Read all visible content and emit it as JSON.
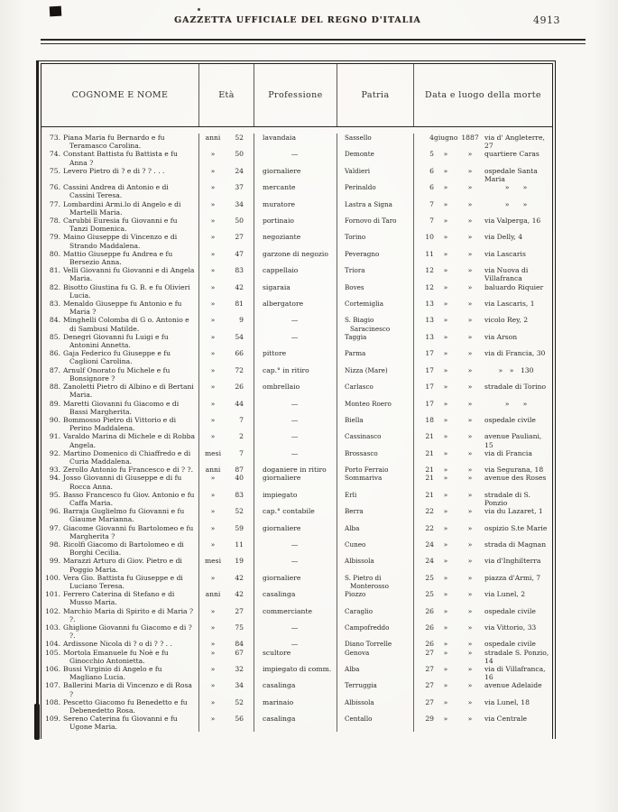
{
  "page": {
    "masthead": "GAZZETTA UFFICIALE DEL REGNO D'ITALIA",
    "page_number": "4913"
  },
  "table": {
    "headers": [
      "COGNOME E NOME",
      "Età",
      "Professione",
      "Patria",
      "Data e luogo della morte"
    ],
    "rows": [
      {
        "n": "73.",
        "name": "Piana Maria fu Bernardo e fu Teramasco Carolina.",
        "unit": "anni",
        "age": "52",
        "prof": "lavandaia",
        "patria": "Sassello",
        "day": "4",
        "month": "giugno",
        "year": "1887",
        "place": "via d' Angleterre, 27"
      },
      {
        "n": "74.",
        "name": "Constant Battista fu Battista e fu Anna ?",
        "unit": "»",
        "age": "50",
        "prof": "—",
        "patria": "Demonte",
        "day": "5",
        "month": "»",
        "year": "»",
        "place": "quartiere Caras"
      },
      {
        "n": "75.",
        "name": "Levero Pietro di ? e di ? ? . . .",
        "unit": "»",
        "age": "24",
        "prof": "giornaliere",
        "patria": "Valdieri",
        "day": "6",
        "month": "»",
        "year": "»",
        "place": "ospedale Santa Maria"
      },
      {
        "n": "76.",
        "name": "Cassini Andrea di Antonio e di Cassini Teresa.",
        "unit": "»",
        "age": "37",
        "prof": "mercante",
        "patria": "Perinaldo",
        "day": "6",
        "month": "»",
        "year": "»",
        "place": "»  »"
      },
      {
        "n": "77.",
        "name": "Lombardini Armi.lo di Angelo e di Martelli Maria.",
        "unit": "»",
        "age": "34",
        "prof": "muratore",
        "patria": "Lastra a Signa",
        "day": "7",
        "month": "»",
        "year": "»",
        "place": "»  »"
      },
      {
        "n": "78.",
        "name": "Carubbi Euresia fu Giovanni e fu Tanzi Domenica.",
        "unit": "»",
        "age": "50",
        "prof": "portinaio",
        "patria": "Fornovo di Taro",
        "day": "7",
        "month": "»",
        "year": "»",
        "place": "via Valperga, 16"
      },
      {
        "n": "79.",
        "name": "Maino Giuseppe di Vincenzo e di Strando Maddalena.",
        "unit": "»",
        "age": "27",
        "prof": "negoziante",
        "patria": "Torino",
        "day": "10",
        "month": "»",
        "year": "»",
        "place": "via Delly, 4"
      },
      {
        "n": "80.",
        "name": "Mattio Giuseppe fu Andrea e fu Bersezio Anna.",
        "unit": "»",
        "age": "47",
        "prof": "garzone di negozio",
        "patria": "Peveragno",
        "day": "11",
        "month": "»",
        "year": "»",
        "place": "via Lascaris"
      },
      {
        "n": "81.",
        "name": "Velli Giovanni fu Giovanni e di Angela Maria.",
        "unit": "»",
        "age": "83",
        "prof": "cappellaio",
        "patria": "Triora",
        "day": "12",
        "month": "»",
        "year": "»",
        "place": "via Nuova di Villafranca"
      },
      {
        "n": "82.",
        "name": "Bisotto Giustina fu G. B. e fu Olivieri Lucia.",
        "unit": "»",
        "age": "42",
        "prof": "sigaraia",
        "patria": "Boves",
        "day": "12",
        "month": "»",
        "year": "»",
        "place": "baluardo Riquier"
      },
      {
        "n": "83.",
        "name": "Menaldo Giuseppe fu Antonio e fu Maria ?",
        "unit": "»",
        "age": "81",
        "prof": "albergatore",
        "patria": "Cortemiglia",
        "day": "13",
        "month": "»",
        "year": "»",
        "place": "via Lascaris, 1"
      },
      {
        "n": "84.",
        "name": "Minghelli Colomba di G o. Antonio e di Sambusi Matilde.",
        "unit": "»",
        "age": "9",
        "prof": "—",
        "patria": "S. Biagio Saracinesco",
        "day": "13",
        "month": "»",
        "year": "»",
        "place": "vicolo Rey, 2"
      },
      {
        "n": "85.",
        "name": "Denegri Giovanni fu Luigi e fu Antonini Annetta.",
        "unit": "»",
        "age": "54",
        "prof": "—",
        "patria": "Taggia",
        "day": "13",
        "month": "»",
        "year": "»",
        "place": "via Arson"
      },
      {
        "n": "86.",
        "name": "Gaja Federico fu Giuseppe e fu Caglioni Carolina.",
        "unit": "»",
        "age": "66",
        "prof": "pittore",
        "patria": "Parma",
        "day": "17",
        "month": "»",
        "year": "»",
        "place": "via di Francia, 30"
      },
      {
        "n": "87.",
        "name": "Arnulf Onorato fu Michele e fu Bonsignore ?",
        "unit": "»",
        "age": "72",
        "prof": "cap.° in ritiro",
        "patria": "Nizza (Mare)",
        "day": "17",
        "month": "»",
        "year": "»",
        "place": "» » 130"
      },
      {
        "n": "88.",
        "name": "Zanoletti Pietro di Albino e di Bertani Maria.",
        "unit": "»",
        "age": "26",
        "prof": "ombrellaio",
        "patria": "Carlasco",
        "day": "17",
        "month": "»",
        "year": "»",
        "place": "stradale di Torino"
      },
      {
        "n": "89.",
        "name": "Maretti Giovanni fu Giacomo e di Bassi Margherita.",
        "unit": "»",
        "age": "44",
        "prof": "—",
        "patria": "Monteo Roero",
        "day": "17",
        "month": "»",
        "year": "»",
        "place": "»  »"
      },
      {
        "n": "90.",
        "name": "Bommosso Pietro di Vittorio e di Perino Maddalena.",
        "unit": "»",
        "age": "7",
        "prof": "—",
        "patria": "Biella",
        "day": "18",
        "month": "»",
        "year": "»",
        "place": "ospedale civile"
      },
      {
        "n": "91.",
        "name": "Varaldo Marina di Michele e di Robba Angela.",
        "unit": "»",
        "age": "2",
        "prof": "—",
        "patria": "Cassinasco",
        "day": "21",
        "month": "»",
        "year": "»",
        "place": "avenue Pauliani, 15"
      },
      {
        "n": "92.",
        "name": "Martino Domenico di Chiaffredo e di Curia Maddalena.",
        "unit": "mesi",
        "age": "7",
        "prof": "—",
        "patria": "Brossasco",
        "day": "21",
        "month": "»",
        "year": "»",
        "place": "via di Francia"
      },
      {
        "n": "93.",
        "name": "Zerollo Antonio fu Francesco e di ? ?.",
        "unit": "anni",
        "age": "87",
        "prof": "doganiere in ritiro",
        "patria": "Porto Ferraio",
        "day": "21",
        "month": "»",
        "year": "»",
        "place": "via Segurana, 18"
      },
      {
        "n": "94.",
        "name": "Josso Giovanni di Giuseppe e di fu Rocca Anna.",
        "unit": "»",
        "age": "40",
        "prof": "giornaliere",
        "patria": "Sommariva",
        "day": "21",
        "month": "»",
        "year": "»",
        "place": "avenue des Roses"
      },
      {
        "n": "95.",
        "name": "Basso Francesco fu Giov. Antonio e fu Caffa Maria.",
        "unit": "»",
        "age": "83",
        "prof": "impiegato",
        "patria": "Erli",
        "day": "21",
        "month": "»",
        "year": "»",
        "place": "stradale di S. Ponzio"
      },
      {
        "n": "96.",
        "name": "Barraja Guglielmo fu Giovanni e fu Giaume Marianna.",
        "unit": "»",
        "age": "52",
        "prof": "cap.° contabile",
        "patria": "Berra",
        "day": "22",
        "month": "»",
        "year": "»",
        "place": "via du Lazaret, 1"
      },
      {
        "n": "97.",
        "name": "Giacome Giovanni fu Bartolomeo e fu Margherita ?",
        "unit": "»",
        "age": "59",
        "prof": "giornaliere",
        "patria": "Alba",
        "day": "22",
        "month": "»",
        "year": "»",
        "place": "ospizio S.te Marie"
      },
      {
        "n": "98.",
        "name": "Ricolfi Giacomo di Bartolomeo e di Borghi Cecilia.",
        "unit": "»",
        "age": "11",
        "prof": "—",
        "patria": "Cuneo",
        "day": "24",
        "month": "»",
        "year": "»",
        "place": "strada di Magnan"
      },
      {
        "n": "99.",
        "name": "Marazzi Arturo di Giov. Pietro e di Poggio Maria.",
        "unit": "mesi",
        "age": "19",
        "prof": "—",
        "patria": "Albissola",
        "day": "24",
        "month": "»",
        "year": "»",
        "place": "via d'Inghilterra"
      },
      {
        "n": "100.",
        "name": "Vera Gio. Battista fu Giuseppe e di Luciano Teresa.",
        "unit": "»",
        "age": "42",
        "prof": "giornaliere",
        "patria": "S. Pietro di Monterosso",
        "day": "25",
        "month": "»",
        "year": "»",
        "place": "piazza d'Armi, 7"
      },
      {
        "n": "101.",
        "name": "Ferrero Caterina di Stefano e di Musso Maria.",
        "unit": "anni",
        "age": "42",
        "prof": "casalinga",
        "patria": "Piozzo",
        "day": "25",
        "month": "»",
        "year": "»",
        "place": "via Lunel, 2"
      },
      {
        "n": "102.",
        "name": "Marchio Maria di Spirito e di Maria ? ?.",
        "unit": "»",
        "age": "27",
        "prof": "commerciante",
        "patria": "Caraglio",
        "day": "26",
        "month": "»",
        "year": "»",
        "place": "ospedale civile"
      },
      {
        "n": "103.",
        "name": "Ghiglione Giovanni fu Giacomo e di ? ?.",
        "unit": "»",
        "age": "75",
        "prof": "—",
        "patria": "Campofreddo",
        "day": "26",
        "month": "»",
        "year": "»",
        "place": "via Vittorio, 33"
      },
      {
        "n": "104.",
        "name": "Ardissone Nicola di ? o di ? ? . .",
        "unit": "»",
        "age": "84",
        "prof": "—",
        "patria": "Diano Torrelle",
        "day": "26",
        "month": "»",
        "year": "»",
        "place": "ospedale civile"
      },
      {
        "n": "105.",
        "name": "Mortola Emanuele fu Noè e fu Ginocchio Antonietta.",
        "unit": "»",
        "age": "67",
        "prof": "scultore",
        "patria": "Genova",
        "day": "27",
        "month": "»",
        "year": "»",
        "place": "stradale S. Ponzio, 14"
      },
      {
        "n": "106.",
        "name": "Bussi Virginio di Angelo e fu Magliano Lucia.",
        "unit": "»",
        "age": "32",
        "prof": "impiegato di comm.",
        "patria": "Alba",
        "day": "27",
        "month": "»",
        "year": "»",
        "place": "via di Villafranca, 16"
      },
      {
        "n": "107.",
        "name": "Ballerini Maria di Vincenzo e di Rosa ?",
        "unit": "»",
        "age": "34",
        "prof": "casalinga",
        "patria": "Terruggia",
        "day": "27",
        "month": "»",
        "year": "»",
        "place": "avenue Adelaide"
      },
      {
        "n": "108.",
        "name": "Pescetto Giacomo fu Benedetto e fu Debenedetto Rosa.",
        "unit": "»",
        "age": "52",
        "prof": "marinaio",
        "patria": "Albissola",
        "day": "27",
        "month": "»",
        "year": "»",
        "place": "via Lunel, 18"
      },
      {
        "n": "109.",
        "name": "Sereno Caterina fu Giovanni e fu Ugone Maria.",
        "unit": "»",
        "age": "56",
        "prof": "casalinga",
        "patria": "Centallo",
        "day": "29",
        "month": "»",
        "year": "»",
        "place": "via Centrale"
      }
    ]
  }
}
